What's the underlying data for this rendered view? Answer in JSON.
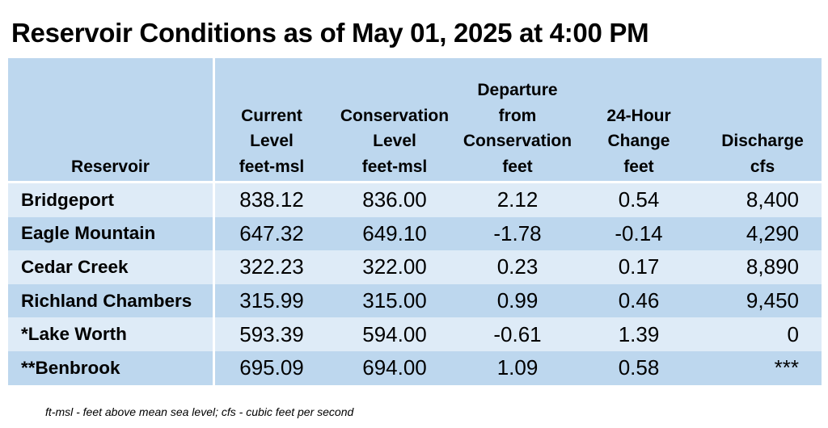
{
  "title": "Reservoir Conditions as of May 01, 2025 at 4:00 PM",
  "headers": {
    "reservoir": [
      "Reservoir"
    ],
    "current_level": [
      "Current",
      "Level",
      "feet-msl"
    ],
    "conservation_level": [
      "Conservation",
      "Level",
      "feet-msl"
    ],
    "departure": [
      "Departure",
      "from",
      "Conservation",
      "feet"
    ],
    "change_24h": [
      "24-Hour",
      "Change",
      "feet"
    ],
    "discharge": [
      "Discharge",
      "cfs"
    ]
  },
  "rows": [
    {
      "reservoir": "Bridgeport",
      "current_level": "838.12",
      "conservation_level": "836.00",
      "departure": "2.12",
      "change_24h": "0.54",
      "discharge": "8,400"
    },
    {
      "reservoir": "Eagle Mountain",
      "current_level": "647.32",
      "conservation_level": "649.10",
      "departure": "-1.78",
      "change_24h": "-0.14",
      "discharge": "4,290"
    },
    {
      "reservoir": "Cedar Creek",
      "current_level": "322.23",
      "conservation_level": "322.00",
      "departure": "0.23",
      "change_24h": "0.17",
      "discharge": "8,890"
    },
    {
      "reservoir": "Richland Chambers",
      "current_level": "315.99",
      "conservation_level": "315.00",
      "departure": "0.99",
      "change_24h": "0.46",
      "discharge": "9,450"
    },
    {
      "reservoir": "*Lake Worth",
      "current_level": "593.39",
      "conservation_level": "594.00",
      "departure": "-0.61",
      "change_24h": "1.39",
      "discharge": "0"
    },
    {
      "reservoir": "**Benbrook",
      "current_level": "695.09",
      "conservation_level": "694.00",
      "departure": "1.09",
      "change_24h": "0.58",
      "discharge": "***"
    }
  ],
  "footnote": "ft-msl - feet above mean sea level; cfs - cubic feet per second",
  "colors": {
    "header_bg": "#bdd7ee",
    "row_light": "#deebf7",
    "row_dark": "#bdd7ee"
  }
}
